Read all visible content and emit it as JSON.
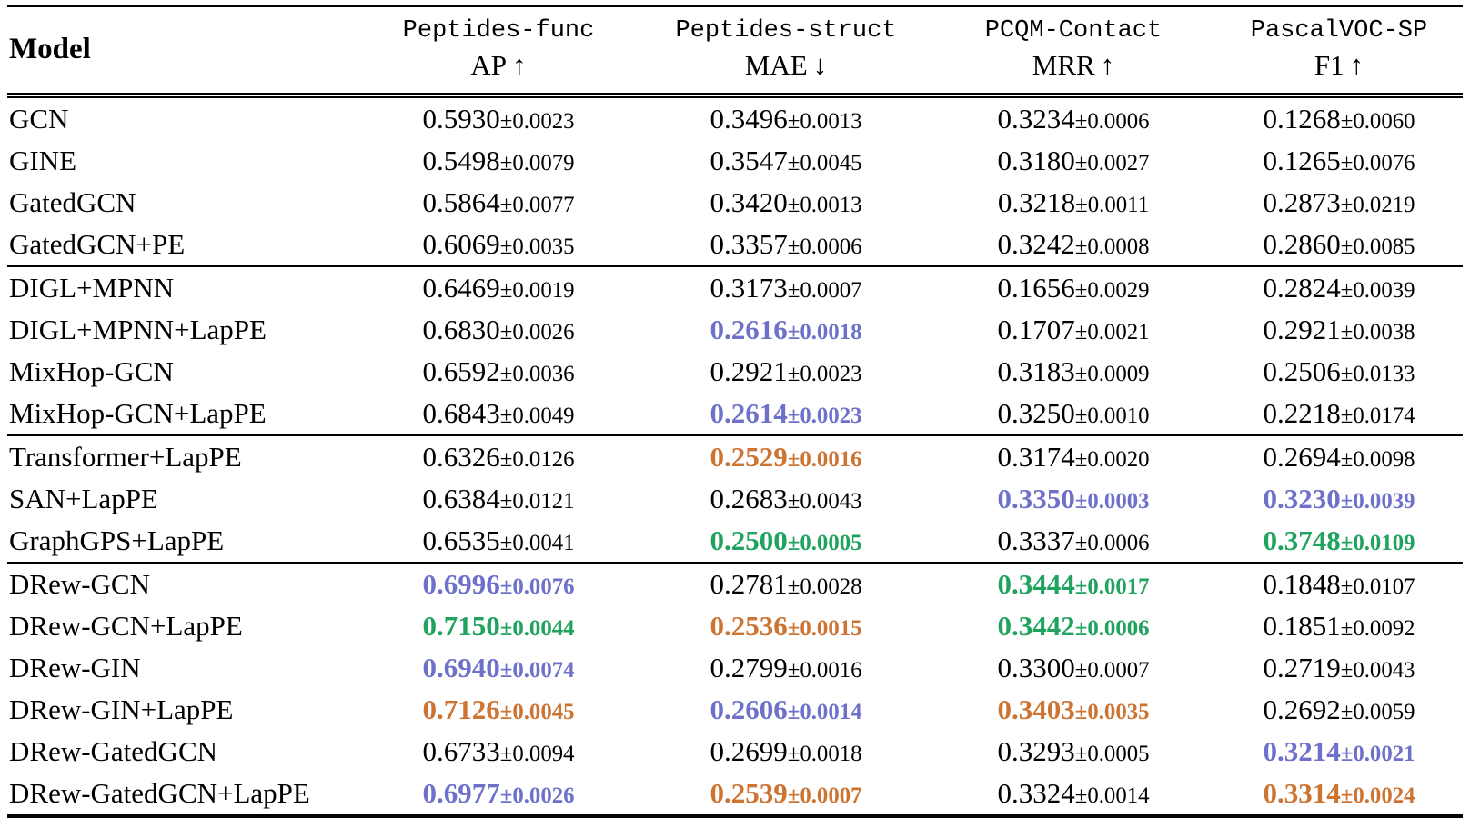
{
  "colors": {
    "first": "#1fa35e",
    "second": "#cd7432",
    "third": "#6e71ca",
    "text": "#000000",
    "rule": "#000000",
    "background": "#ffffff"
  },
  "legend_note": "first=green bold, second=orange bold, third=blue bold",
  "table": {
    "model_header": "Model",
    "columns": [
      {
        "dataset": "Peptides-func",
        "metric": "AP",
        "arrow": "↑"
      },
      {
        "dataset": "Peptides-struct",
        "metric": "MAE",
        "arrow": "↓"
      },
      {
        "dataset": "PCQM-Contact",
        "metric": "MRR",
        "arrow": "↑"
      },
      {
        "dataset": "PascalVOC-SP",
        "metric": "F1",
        "arrow": "↑"
      }
    ],
    "groups": [
      {
        "rows": [
          {
            "model": "GCN",
            "cells": [
              {
                "mean": "0.5930",
                "std": "0.0023",
                "rank": "none"
              },
              {
                "mean": "0.3496",
                "std": "0.0013",
                "rank": "none"
              },
              {
                "mean": "0.3234",
                "std": "0.0006",
                "rank": "none"
              },
              {
                "mean": "0.1268",
                "std": "0.0060",
                "rank": "none"
              }
            ]
          },
          {
            "model": "GINE",
            "cells": [
              {
                "mean": "0.5498",
                "std": "0.0079",
                "rank": "none"
              },
              {
                "mean": "0.3547",
                "std": "0.0045",
                "rank": "none"
              },
              {
                "mean": "0.3180",
                "std": "0.0027",
                "rank": "none"
              },
              {
                "mean": "0.1265",
                "std": "0.0076",
                "rank": "none"
              }
            ]
          },
          {
            "model": "GatedGCN",
            "cells": [
              {
                "mean": "0.5864",
                "std": "0.0077",
                "rank": "none"
              },
              {
                "mean": "0.3420",
                "std": "0.0013",
                "rank": "none"
              },
              {
                "mean": "0.3218",
                "std": "0.0011",
                "rank": "none"
              },
              {
                "mean": "0.2873",
                "std": "0.0219",
                "rank": "none"
              }
            ]
          },
          {
            "model": "GatedGCN+PE",
            "cells": [
              {
                "mean": "0.6069",
                "std": "0.0035",
                "rank": "none"
              },
              {
                "mean": "0.3357",
                "std": "0.0006",
                "rank": "none"
              },
              {
                "mean": "0.3242",
                "std": "0.0008",
                "rank": "none"
              },
              {
                "mean": "0.2860",
                "std": "0.0085",
                "rank": "none"
              }
            ]
          }
        ]
      },
      {
        "rows": [
          {
            "model": "DIGL+MPNN",
            "cells": [
              {
                "mean": "0.6469",
                "std": "0.0019",
                "rank": "none"
              },
              {
                "mean": "0.3173",
                "std": "0.0007",
                "rank": "none"
              },
              {
                "mean": "0.1656",
                "std": "0.0029",
                "rank": "none"
              },
              {
                "mean": "0.2824",
                "std": "0.0039",
                "rank": "none"
              }
            ]
          },
          {
            "model": "DIGL+MPNN+LapPE",
            "cells": [
              {
                "mean": "0.6830",
                "std": "0.0026",
                "rank": "none"
              },
              {
                "mean": "0.2616",
                "std": "0.0018",
                "rank": "third"
              },
              {
                "mean": "0.1707",
                "std": "0.0021",
                "rank": "none"
              },
              {
                "mean": "0.2921",
                "std": "0.0038",
                "rank": "none"
              }
            ]
          },
          {
            "model": "MixHop-GCN",
            "cells": [
              {
                "mean": "0.6592",
                "std": "0.0036",
                "rank": "none"
              },
              {
                "mean": "0.2921",
                "std": "0.0023",
                "rank": "none"
              },
              {
                "mean": "0.3183",
                "std": "0.0009",
                "rank": "none"
              },
              {
                "mean": "0.2506",
                "std": "0.0133",
                "rank": "none"
              }
            ]
          },
          {
            "model": "MixHop-GCN+LapPE",
            "cells": [
              {
                "mean": "0.6843",
                "std": "0.0049",
                "rank": "none"
              },
              {
                "mean": "0.2614",
                "std": "0.0023",
                "rank": "third"
              },
              {
                "mean": "0.3250",
                "std": "0.0010",
                "rank": "none"
              },
              {
                "mean": "0.2218",
                "std": "0.0174",
                "rank": "none"
              }
            ]
          }
        ]
      },
      {
        "rows": [
          {
            "model": "Transformer+LapPE",
            "cells": [
              {
                "mean": "0.6326",
                "std": "0.0126",
                "rank": "none"
              },
              {
                "mean": "0.2529",
                "std": "0.0016",
                "rank": "second"
              },
              {
                "mean": "0.3174",
                "std": "0.0020",
                "rank": "none"
              },
              {
                "mean": "0.2694",
                "std": "0.0098",
                "rank": "none"
              }
            ]
          },
          {
            "model": "SAN+LapPE",
            "cells": [
              {
                "mean": "0.6384",
                "std": "0.0121",
                "rank": "none"
              },
              {
                "mean": "0.2683",
                "std": "0.0043",
                "rank": "none"
              },
              {
                "mean": "0.3350",
                "std": "0.0003",
                "rank": "third"
              },
              {
                "mean": "0.3230",
                "std": "0.0039",
                "rank": "third"
              }
            ]
          },
          {
            "model": "GraphGPS+LapPE",
            "cells": [
              {
                "mean": "0.6535",
                "std": "0.0041",
                "rank": "none"
              },
              {
                "mean": "0.2500",
                "std": "0.0005",
                "rank": "first"
              },
              {
                "mean": "0.3337",
                "std": "0.0006",
                "rank": "none"
              },
              {
                "mean": "0.3748",
                "std": "0.0109",
                "rank": "first"
              }
            ]
          }
        ]
      },
      {
        "rows": [
          {
            "model": "DRew-GCN",
            "cells": [
              {
                "mean": "0.6996",
                "std": "0.0076",
                "rank": "third"
              },
              {
                "mean": "0.2781",
                "std": "0.0028",
                "rank": "none"
              },
              {
                "mean": "0.3444",
                "std": "0.0017",
                "rank": "first"
              },
              {
                "mean": "0.1848",
                "std": "0.0107",
                "rank": "none"
              }
            ]
          },
          {
            "model": "DRew-GCN+LapPE",
            "cells": [
              {
                "mean": "0.7150",
                "std": "0.0044",
                "rank": "first"
              },
              {
                "mean": "0.2536",
                "std": "0.0015",
                "rank": "second"
              },
              {
                "mean": "0.3442",
                "std": "0.0006",
                "rank": "first"
              },
              {
                "mean": "0.1851",
                "std": "0.0092",
                "rank": "none"
              }
            ]
          },
          {
            "model": "DRew-GIN",
            "cells": [
              {
                "mean": "0.6940",
                "std": "0.0074",
                "rank": "third"
              },
              {
                "mean": "0.2799",
                "std": "0.0016",
                "rank": "none"
              },
              {
                "mean": "0.3300",
                "std": "0.0007",
                "rank": "none"
              },
              {
                "mean": "0.2719",
                "std": "0.0043",
                "rank": "none"
              }
            ]
          },
          {
            "model": "DRew-GIN+LapPE",
            "cells": [
              {
                "mean": "0.7126",
                "std": "0.0045",
                "rank": "second"
              },
              {
                "mean": "0.2606",
                "std": "0.0014",
                "rank": "third"
              },
              {
                "mean": "0.3403",
                "std": "0.0035",
                "rank": "second"
              },
              {
                "mean": "0.2692",
                "std": "0.0059",
                "rank": "none"
              }
            ]
          },
          {
            "model": "DRew-GatedGCN",
            "cells": [
              {
                "mean": "0.6733",
                "std": "0.0094",
                "rank": "none"
              },
              {
                "mean": "0.2699",
                "std": "0.0018",
                "rank": "none"
              },
              {
                "mean": "0.3293",
                "std": "0.0005",
                "rank": "none"
              },
              {
                "mean": "0.3214",
                "std": "0.0021",
                "rank": "third"
              }
            ]
          },
          {
            "model": "DRew-GatedGCN+LapPE",
            "cells": [
              {
                "mean": "0.6977",
                "std": "0.0026",
                "rank": "third"
              },
              {
                "mean": "0.2539",
                "std": "0.0007",
                "rank": "second"
              },
              {
                "mean": "0.3324",
                "std": "0.0014",
                "rank": "none"
              },
              {
                "mean": "0.3314",
                "std": "0.0024",
                "rank": "second"
              }
            ]
          }
        ]
      }
    ]
  }
}
